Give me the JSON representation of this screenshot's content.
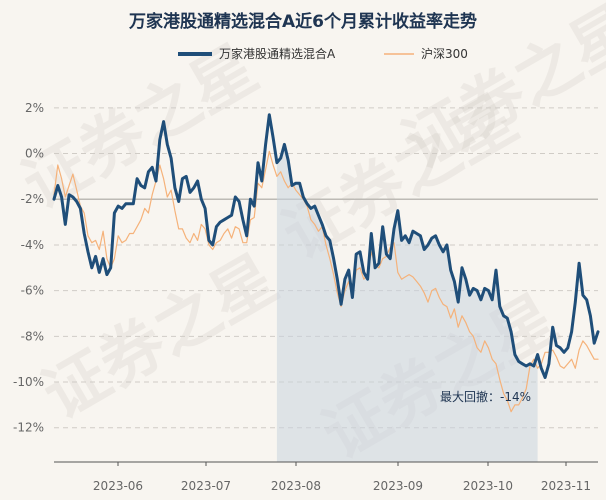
{
  "chart_data": {
    "type": "line",
    "title": "万家港股通精选混合A近6个月累计收益率走势",
    "xlabel": "",
    "ylabel": "",
    "ylim": [
      -13.5,
      3.0
    ],
    "yticks": [
      2,
      0,
      -2,
      -4,
      -6,
      -8,
      -10,
      -12
    ],
    "ytick_labels": [
      "2%",
      "0%",
      "-2%",
      "-4%",
      "-6%",
      "-8%",
      "-10%",
      "-12%"
    ],
    "xticks": [
      "2023-06",
      "2023-07",
      "2023-08",
      "2023-09",
      "2023-10",
      "2023-11"
    ],
    "legend_position": "top-center",
    "grid": "horizontal dashed",
    "watermark": "证券之星",
    "colors": {
      "fund": "#1f4e79",
      "index": "#f5b27a",
      "drawdown": "#c8d3df"
    },
    "series": [
      {
        "name": "万家港股通精选混合A",
        "values": [
          -2.0,
          -1.4,
          -1.9,
          -3.1,
          -1.8,
          -1.9,
          -2.1,
          -2.4,
          -3.5,
          -4.3,
          -5.0,
          -4.5,
          -5.2,
          -4.6,
          -5.3,
          -5.0,
          -2.6,
          -2.3,
          -2.4,
          -2.2,
          -2.2,
          -2.2,
          -1.1,
          -1.4,
          -1.5,
          -0.8,
          -0.6,
          -1.2,
          0.6,
          1.4,
          0.4,
          -0.2,
          -1.5,
          -2.1,
          -1.1,
          -1.0,
          -1.7,
          -1.5,
          -1.2,
          -2.0,
          -2.4,
          -3.8,
          -4.0,
          -3.2,
          -3.0,
          -2.9,
          -2.8,
          -2.7,
          -1.9,
          -2.1,
          -2.9,
          -3.6,
          -2.0,
          -2.3,
          -0.4,
          -1.2,
          0.4,
          1.7,
          0.7,
          -0.4,
          -0.2,
          0.4,
          -0.3,
          -1.4,
          -1.3,
          -1.3,
          -1.9,
          -2.2,
          -2.4,
          -2.3,
          -2.7,
          -3.1,
          -3.6,
          -3.8,
          -4.6,
          -5.5,
          -6.6,
          -5.5,
          -5.1,
          -6.3,
          -4.4,
          -4.3,
          -5.2,
          -5.5,
          -3.5,
          -5.0,
          -4.8,
          -3.2,
          -4.4,
          -4.6,
          -3.3,
          -2.5,
          -3.8,
          -3.6,
          -3.9,
          -3.4,
          -3.5,
          -3.6,
          -4.2,
          -4.0,
          -3.7,
          -3.6,
          -4.0,
          -4.3,
          -4.0,
          -5.1,
          -5.6,
          -6.5,
          -5.0,
          -5.5,
          -6.2,
          -5.9,
          -6.0,
          -6.4,
          -5.9,
          -6.0,
          -6.4,
          -5.1,
          -6.7,
          -7.1,
          -7.2,
          -7.8,
          -8.8,
          -9.1,
          -9.2,
          -9.3,
          -9.2,
          -9.3,
          -8.8,
          -9.4,
          -9.8,
          -9.2,
          -7.6,
          -8.4,
          -8.5,
          -8.7,
          -8.5,
          -7.8,
          -6.5,
          -4.8,
          -6.2,
          -6.4,
          -7.1,
          -8.3,
          -7.8
        ]
      },
      {
        "name": "沪深300",
        "values": [
          -1.8,
          -0.5,
          -1.1,
          -1.9,
          -1.4,
          -0.9,
          -1.6,
          -2.3,
          -2.6,
          -3.6,
          -3.9,
          -3.8,
          -4.2,
          -3.4,
          -4.6,
          -5.0,
          -4.6,
          -3.6,
          -3.9,
          -3.8,
          -3.5,
          -3.5,
          -3.2,
          -2.9,
          -2.4,
          -2.6,
          -1.8,
          -1.2,
          -0.5,
          -1.1,
          -1.9,
          -1.6,
          -2.5,
          -3.3,
          -3.3,
          -3.7,
          -3.9,
          -3.5,
          -3.8,
          -3.1,
          -3.3,
          -4.0,
          -4.2,
          -3.9,
          -3.8,
          -3.5,
          -3.3,
          -3.7,
          -3.2,
          -3.3,
          -3.9,
          -3.9,
          -2.9,
          -2.8,
          -1.3,
          -1.5,
          -0.7,
          0.1,
          -0.5,
          -1.0,
          -0.8,
          -1.2,
          -1.5,
          -1.3,
          -1.6,
          -1.8,
          -2.0,
          -2.3,
          -2.9,
          -3.1,
          -3.4,
          -3.2,
          -4.0,
          -4.6,
          -5.3,
          -6.1,
          -6.7,
          -6.0,
          -5.6,
          -6.3,
          -5.1,
          -5.0,
          -5.5,
          -5.3,
          -4.3,
          -4.9,
          -5.0,
          -4.6,
          -4.5,
          -4.1,
          -3.9,
          -5.2,
          -5.5,
          -5.4,
          -5.3,
          -5.4,
          -5.6,
          -5.8,
          -6.1,
          -6.5,
          -6.0,
          -5.9,
          -6.3,
          -6.6,
          -6.7,
          -7.2,
          -6.8,
          -7.6,
          -7.1,
          -7.4,
          -7.8,
          -8.0,
          -8.5,
          -8.7,
          -8.2,
          -8.5,
          -9.0,
          -9.2,
          -9.9,
          -10.5,
          -10.8,
          -11.3,
          -11.0,
          -11.0,
          -10.7,
          -10.3,
          -9.3,
          -9.0,
          -9.4,
          -9.2,
          -8.7,
          -8.7,
          -8.6,
          -8.9,
          -9.3,
          -9.4,
          -9.2,
          -9.0,
          -9.4,
          -8.6,
          -8.2,
          -8.4,
          -8.7,
          -9.0,
          -9.0
        ]
      }
    ],
    "annotation": {
      "text": "最大回撤：-14%",
      "shaded_from_index": 59,
      "shaded_to_index": 128
    }
  }
}
